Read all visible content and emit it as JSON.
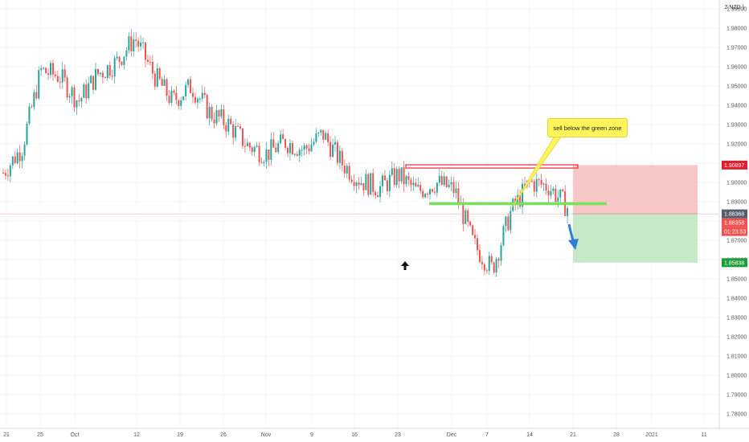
{
  "header": {
    "currency_label": "NZD"
  },
  "annotation": {
    "callout_text": "sell below the green zone"
  },
  "price_tags": {
    "stop": "1.90897",
    "last": "1.88368",
    "current": "1.88358",
    "countdown": "01:23:53",
    "target": "1.85838"
  },
  "colors": {
    "bull": "#26a69a",
    "bear": "#ef5350",
    "resistance": "#f23645",
    "support": "#76e35a",
    "stop_zone": "#f9c7c7",
    "target_zone": "#c8e9c8",
    "callout_bg": "#fff45a",
    "arrow_blue": "#2e7ed8"
  },
  "chart_data": {
    "type": "candlestick",
    "y_axis": {
      "min": 1.775,
      "max": 1.995,
      "ticks": [
        "1.99000",
        "1.98000",
        "1.97000",
        "1.96000",
        "1.95000",
        "1.94000",
        "1.93000",
        "1.92000",
        "1.91000",
        "1.90000",
        "1.89000",
        "1.88000",
        "1.87000",
        "1.86000",
        "1.85000",
        "1.84000",
        "1.83000",
        "1.82000",
        "1.81000",
        "1.80000",
        "1.79000",
        "1.78000"
      ]
    },
    "x_axis": {
      "labels": [
        "21",
        "25",
        "Oct",
        "12",
        "19",
        "26",
        "Nov",
        "9",
        "16",
        "23",
        "Dec",
        "7",
        "14",
        "21",
        "28",
        "2021",
        "11"
      ]
    },
    "resistance_level": 1.9083,
    "support_level": 1.889,
    "entry_level": 1.8837,
    "stop_level": 1.909,
    "target_level": 1.8584,
    "trend_path": [
      1.905,
      1.918,
      1.958,
      1.955,
      1.942,
      1.956,
      1.962,
      1.975,
      1.956,
      1.942,
      1.95,
      1.936,
      1.93,
      1.919,
      1.915,
      1.921,
      1.917,
      1.925,
      1.91,
      1.901,
      1.897,
      1.904,
      1.895,
      1.9,
      1.896,
      1.868,
      1.855,
      1.885,
      1.9,
      1.898,
      1.887
    ]
  }
}
